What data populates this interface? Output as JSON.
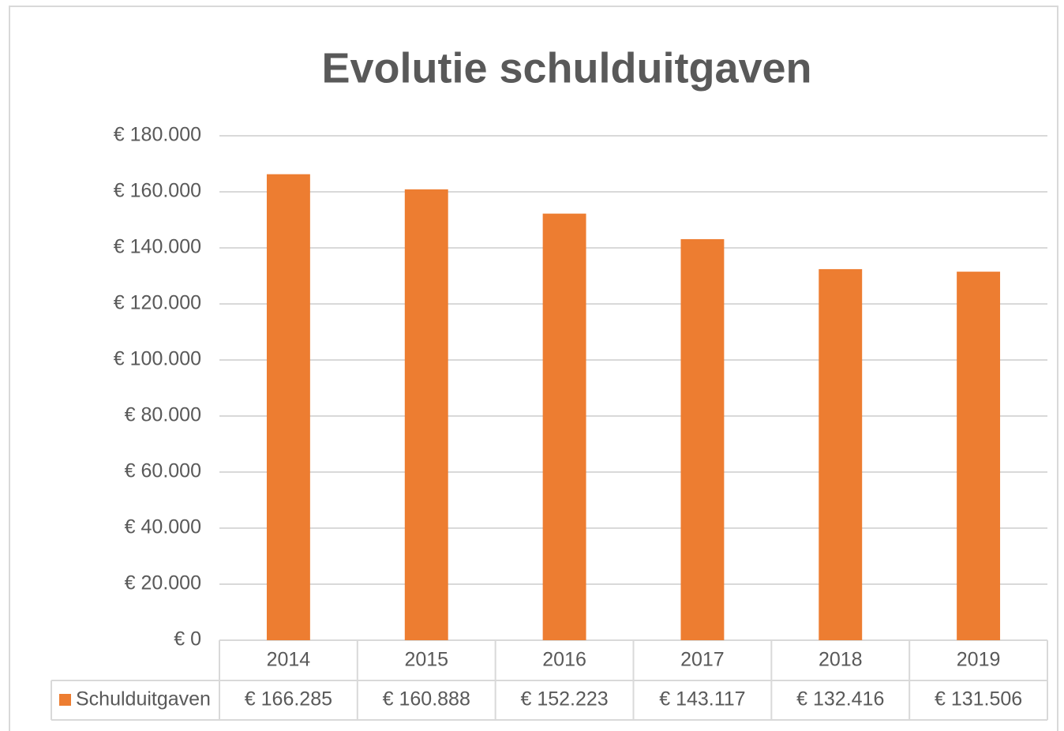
{
  "chart_data": {
    "type": "bar",
    "title": "Evolutie schulduitgaven",
    "categories": [
      "2014",
      "2015",
      "2016",
      "2017",
      "2018",
      "2019"
    ],
    "series": [
      {
        "name": "Schulduitgaven",
        "color": "#ed7d31",
        "values": [
          166285,
          160888,
          152223,
          143117,
          132416,
          131506
        ],
        "value_labels": [
          "€ 166.285",
          "€ 160.888",
          "€ 152.223",
          "€ 143.117",
          "€ 132.416",
          "€ 131.506"
        ]
      }
    ],
    "ylim": [
      0,
      180000
    ],
    "yticks": [
      {
        "value": 0,
        "label": "€ 0"
      },
      {
        "value": 20000,
        "label": "€ 20.000"
      },
      {
        "value": 40000,
        "label": "€ 40.000"
      },
      {
        "value": 60000,
        "label": "€ 60.000"
      },
      {
        "value": 80000,
        "label": "€ 80.000"
      },
      {
        "value": 100000,
        "label": "€ 100.000"
      },
      {
        "value": 120000,
        "label": "€ 120.000"
      },
      {
        "value": 140000,
        "label": "€ 140.000"
      },
      {
        "value": 160000,
        "label": "€ 160.000"
      },
      {
        "value": 180000,
        "label": "€ 180.000"
      }
    ],
    "grid": true
  }
}
